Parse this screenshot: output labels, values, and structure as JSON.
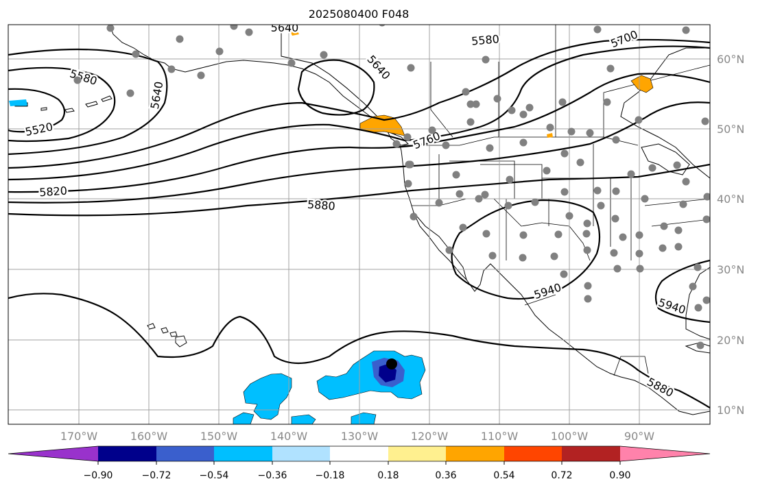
{
  "title": "2025080400 F048",
  "lat_labels": [
    "60°N",
    "50°N",
    "40°N",
    "30°N",
    "20°N",
    "10°N"
  ],
  "lon_labels": [
    "170°W",
    "160°W",
    "150°W",
    "140°W",
    "130°W",
    "120°W",
    "110°W",
    "100°W",
    "90°W"
  ],
  "contour_labels": [
    "5520",
    "5580",
    "5640",
    "5640",
    "5640",
    "5580",
    "5700",
    "5760",
    "5820",
    "5880",
    "5940",
    "5940",
    "5880"
  ],
  "colorbar": {
    "ticks": [
      "−0.90",
      "−0.72",
      "−0.54",
      "−0.36",
      "−0.18",
      "0.18",
      "0.36",
      "0.54",
      "0.72",
      "0.90"
    ],
    "colors": [
      "#9932cc",
      "#00008b",
      "#3a5fcd",
      "#00bfff",
      "#b0e2ff",
      "#ffffff",
      "#fff08f",
      "#ffa500",
      "#ff4500",
      "#b22222",
      "#ff82ab"
    ]
  },
  "colors": {
    "station": "#808080",
    "grid": "#a0a0a0",
    "contour": "#000000",
    "positive_anomaly": "#ffa500",
    "negative_anomaly": "#00bfff"
  }
}
